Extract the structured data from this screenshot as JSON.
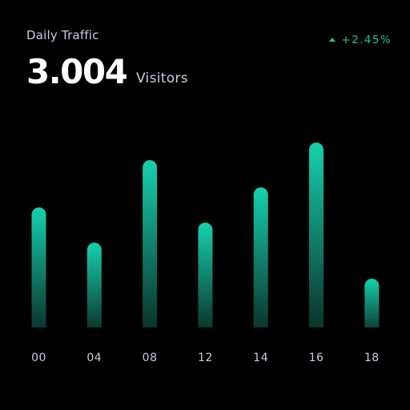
{
  "header": {
    "title": "Daily Traffic",
    "value": "3.004",
    "unit": "Visitors",
    "change": "+2.45%",
    "change_icon": "triangle-up-icon"
  },
  "colors": {
    "background": "#000000",
    "accent": "#19c4a0",
    "bar_top": "#16d1ad",
    "bar_bottom": "#0a2d26",
    "label": "#c9cbe0"
  },
  "chart_data": {
    "type": "bar",
    "title": "Daily Traffic",
    "categories": [
      "00",
      "04",
      "08",
      "12",
      "14",
      "16",
      "18"
    ],
    "series": [
      {
        "values": [
          150,
          106,
          209,
          131,
          175,
          231,
          61
        ]
      }
    ],
    "ylim": [
      0,
      240
    ],
    "grid": false,
    "legend": "none"
  }
}
